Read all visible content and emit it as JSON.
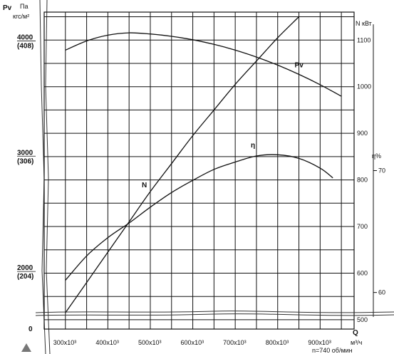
{
  "chart_data": {
    "type": "line",
    "x_axis": {
      "label": "Q",
      "unit": "м³/ч",
      "speed_note": "n=740 об/мин",
      "ticks": [
        "300x10³",
        "400x10³",
        "500x10³",
        "600x10³",
        "700x10³",
        "800x10³",
        "900x10³"
      ],
      "tick_values": [
        300,
        400,
        500,
        600,
        700,
        800,
        900
      ],
      "range": [
        250,
        980
      ]
    },
    "left_axis": {
      "label_top": "Па",
      "label_bottom": "кгс/м²",
      "symbol": "Pv",
      "ticks": [
        {
          "value": 4000,
          "pa": "4000",
          "kgs": "(408)"
        },
        {
          "value": 3000,
          "pa": "3000",
          "kgs": "(306)"
        },
        {
          "value": 2000,
          "pa": "2000",
          "kgs": "(204)"
        }
      ],
      "zero_label": "0",
      "range": [
        1500,
        4250
      ]
    },
    "right_axis_power": {
      "label": "N кВт",
      "ticks": [
        "1100",
        "1000",
        "900",
        "800",
        "700",
        "600",
        "500"
      ],
      "tick_values": [
        1100,
        1000,
        900,
        800,
        700,
        600,
        500
      ],
      "range": [
        480,
        1160
      ]
    },
    "right_axis_efficiency": {
      "label": "η%",
      "ticks": [
        "70",
        "60"
      ],
      "tick_values": [
        70,
        60
      ],
      "range": [
        57,
        83
      ]
    },
    "series": [
      {
        "name": "Pv",
        "axis": "left",
        "x": [
          300,
          350,
          400,
          450,
          500,
          550,
          600,
          650,
          700,
          750,
          800,
          850,
          900,
          950
        ],
        "y": [
          3920,
          4000,
          4050,
          4070,
          4060,
          4040,
          4010,
          3970,
          3920,
          3860,
          3790,
          3710,
          3620,
          3520
        ]
      },
      {
        "name": "N",
        "axis": "power",
        "x": [
          300,
          350,
          400,
          450,
          500,
          550,
          600,
          650,
          700,
          750,
          800,
          850
        ],
        "y": [
          515,
          580,
          645,
          710,
          775,
          835,
          895,
          950,
          1005,
          1055,
          1105,
          1150
        ]
      },
      {
        "name": "η",
        "axis": "efficiency",
        "x": [
          300,
          350,
          400,
          450,
          500,
          550,
          600,
          650,
          700,
          750,
          800,
          850,
          900,
          930
        ],
        "y": [
          61,
          63,
          64.5,
          65.7,
          67,
          68.2,
          69.2,
          70.1,
          70.7,
          71.2,
          71.3,
          71.0,
          70.2,
          69.4
        ]
      }
    ],
    "grid": true
  }
}
